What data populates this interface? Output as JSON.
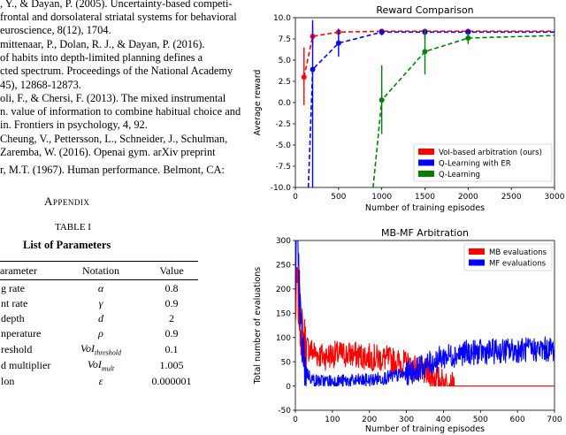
{
  "references": [
    ", Y., & Dayan, P. (2005). Uncertainty-based competi-",
    "frontal and dorsolateral striatal systems for behavioral",
    "euroscience, 8(12), 1704.",
    "mittenaar, P., Dolan, R. J., & Dayan, P. (2016).",
    "of habits into depth-limited planning defines a",
    "cted spectrum. Proceedings of the National Academy",
    "45), 12868-12873.",
    "oli, F., & Chersi, F. (2013). The mixed instrumental",
    "n. value of information to combine habitual choice and",
    "in. Frontiers in psychology, 4, 92.",
    "Cheung, V., Pettersson, L., Schneider, J., Schulman,",
    "Zaremba, W. (2016). Openai gym. arXiv preprint",
    "r, M.T. (1967). Human performance. Belmont, CA:"
  ],
  "appendix": "Appendix",
  "table": {
    "label": "TABLE I",
    "title": "List of Parameters",
    "headers": [
      "arameter",
      "Notation",
      "Value"
    ],
    "rows": [
      [
        "g rate",
        "α",
        "0.8"
      ],
      [
        "nt rate",
        "γ",
        "0.9"
      ],
      [
        "depth",
        "d",
        "2"
      ],
      [
        "nperature",
        "ρ",
        "0.9"
      ],
      [
        "reshold",
        "VoI",
        "threshold",
        "0.1"
      ],
      [
        "d multiplier",
        "VoI",
        "mult",
        "1.005"
      ],
      [
        "lon",
        "ε",
        "0.000001"
      ]
    ]
  },
  "chart_data": [
    {
      "type": "line",
      "title": "Reward Comparison",
      "xlabel": "Number of training episodes",
      "ylabel": "Average reward",
      "xlim": [
        0,
        3000
      ],
      "ylim": [
        -10,
        10
      ],
      "xticks": [
        "0",
        "500",
        "1000",
        "1500",
        "2000",
        "2500",
        "3000"
      ],
      "yticks": [
        "-10.0",
        "-7.5",
        "-5.0",
        "-2.5",
        "0.0",
        "2.5",
        "5.0",
        "7.5",
        "10.0"
      ],
      "legend_position": "lower-right",
      "series": [
        {
          "name": "VoI-based arbitration (ours)",
          "color": "#ff0000",
          "x": [
            100,
            200,
            500,
            1000,
            1500,
            2000,
            3000
          ],
          "y": [
            3.0,
            7.8,
            8.3,
            8.4,
            8.4,
            8.4,
            8.4
          ],
          "err_low": [
            -0.3,
            6.6,
            8.0,
            8.2,
            8.2,
            8.2,
            8.2
          ],
          "err_high": [
            6.5,
            9.0,
            8.6,
            8.6,
            8.6,
            8.6,
            8.6
          ],
          "markers": [
            true,
            true,
            true,
            true,
            true,
            true,
            false
          ]
        },
        {
          "name": "Q-Learning with ER",
          "color": "#0000ff",
          "x": [
            150,
            200,
            500,
            1000,
            1500,
            2000,
            3000
          ],
          "y": [
            -10.0,
            3.9,
            7.0,
            8.3,
            8.3,
            8.3,
            8.3
          ],
          "err_low": [
            -10.0,
            -10.0,
            5.4,
            7.9,
            7.6,
            8.0,
            8.0
          ],
          "err_high": [
            -10.0,
            9.7,
            8.7,
            8.6,
            8.6,
            8.6,
            8.6
          ],
          "markers": [
            false,
            true,
            true,
            true,
            true,
            true,
            false
          ]
        },
        {
          "name": "Q-Learning",
          "color": "#008000",
          "x": [
            900,
            1000,
            1500,
            2000,
            3000
          ],
          "y": [
            -10.0,
            0.3,
            6.0,
            7.6,
            7.9
          ],
          "err_low": [
            -10.0,
            -3.7,
            3.3,
            6.9,
            7.9
          ],
          "err_high": [
            -10.0,
            4.4,
            8.7,
            8.3,
            7.9
          ],
          "markers": [
            false,
            true,
            true,
            true,
            false
          ]
        }
      ]
    },
    {
      "type": "line",
      "title": "MB-MF Arbitration",
      "xlabel": "Number of training episodes",
      "ylabel": "Total number of evaluations",
      "xlim": [
        0,
        700
      ],
      "ylim": [
        -50,
        300
      ],
      "xticks": [
        "0",
        "100",
        "200",
        "300",
        "400",
        "500",
        "600",
        "700"
      ],
      "yticks": [
        "-50",
        "0",
        "50",
        "100",
        "150",
        "200",
        "250",
        "300"
      ],
      "legend_position": "top-right",
      "series": [
        {
          "name": "MB evaluations",
          "color": "#ff0000",
          "x": [
            0,
            5,
            10,
            15,
            20,
            25,
            30,
            40,
            50,
            60,
            80,
            100,
            150,
            200,
            250,
            300,
            330,
            360,
            390,
            410,
            420,
            450,
            500,
            600,
            700
          ],
          "y": [
            150,
            210,
            160,
            120,
            100,
            90,
            80,
            75,
            70,
            65,
            60,
            65,
            65,
            60,
            55,
            45,
            35,
            25,
            12,
            4,
            0,
            0,
            0,
            0,
            0
          ]
        },
        {
          "name": "MF evaluations",
          "color": "#0000ff",
          "x": [
            0,
            3,
            6,
            10,
            15,
            20,
            30,
            40,
            50,
            60,
            80,
            100,
            150,
            200,
            250,
            300,
            330,
            360,
            400,
            450,
            500,
            550,
            600,
            650,
            700
          ],
          "y": [
            250,
            300,
            270,
            200,
            120,
            60,
            30,
            18,
            12,
            10,
            10,
            10,
            10,
            12,
            18,
            25,
            35,
            45,
            60,
            68,
            70,
            72,
            74,
            75,
            76
          ]
        }
      ]
    }
  ]
}
